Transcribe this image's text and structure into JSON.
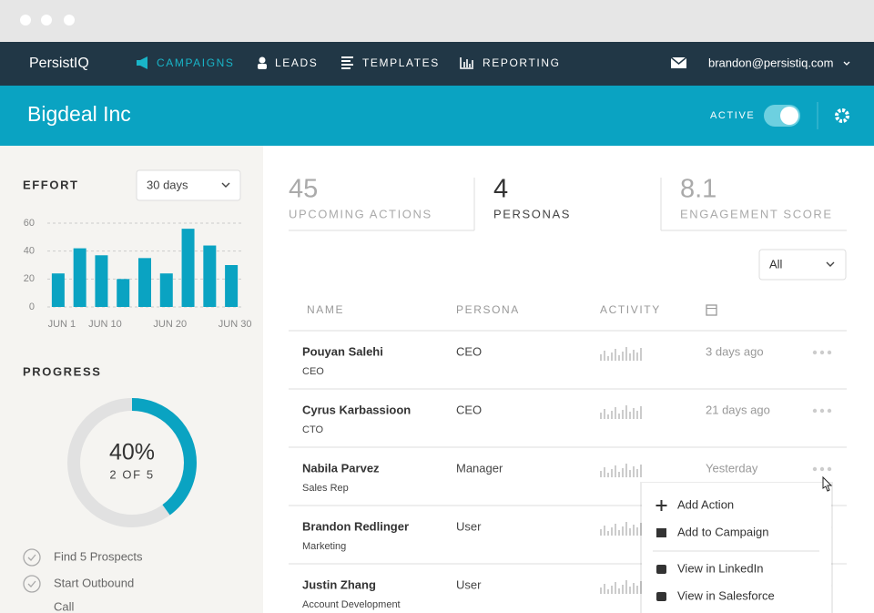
{
  "window": {
    "brand": "PersistIQ",
    "nav": [
      "CAMPAIGNS",
      "LEADS",
      "TEMPLATES",
      "REPORTING"
    ],
    "user": "brandon@persistiq.com"
  },
  "header": {
    "title": "Bigdeal Inc",
    "status": "ACTIVE"
  },
  "chart_data": {
    "type": "bar",
    "title": "EFFORT",
    "range": "30 days",
    "categories": [
      "JUN 1",
      null,
      "JUN 10",
      null,
      null,
      "JUN 20",
      null,
      null,
      "JUN 30"
    ],
    "values": [
      24,
      42,
      37,
      20,
      35,
      24,
      56,
      44,
      30
    ],
    "color": "#0aa3c2",
    "ylim": [
      0,
      60
    ],
    "yticks": [
      0,
      20,
      40,
      60
    ],
    "grid": true
  },
  "progress": {
    "title": "PROGRESS",
    "value": 40,
    "label": "40%",
    "detail": "2 OF 5",
    "color": "#0aa3c2",
    "checklist": [
      "Find 5 Prospects",
      "Start Outbound",
      "Call"
    ]
  },
  "stats": [
    {
      "value": "45",
      "label": "UPCOMING ACTIONS"
    },
    {
      "value": "4",
      "label": "PERSONAS"
    },
    {
      "value": "8.1",
      "label": "ENGAGEMENT SCORE"
    }
  ],
  "filter": "All",
  "table": {
    "columns": [
      "NAME",
      "PERSONA",
      "ACTIVITY"
    ],
    "rows": [
      {
        "name": "Pouyan Salehi",
        "title": "CEO",
        "persona": "CEO",
        "last": "3 days ago"
      },
      {
        "name": "Cyrus Karbassioon",
        "title": "CTO",
        "persona": "CEO",
        "last": "21 days ago"
      },
      {
        "name": "Nabila Parvez",
        "title": "Sales Rep",
        "persona": "Manager",
        "last": "Yesterday"
      },
      {
        "name": "Brandon Redlinger",
        "title": "Marketing",
        "persona": "User"
      },
      {
        "name": "Justin Zhang",
        "title": "Account Development",
        "persona": "User"
      }
    ]
  },
  "menu": [
    "Add Action",
    "Add to Campaign",
    "View in LinkedIn",
    "View in Salesforce"
  ]
}
